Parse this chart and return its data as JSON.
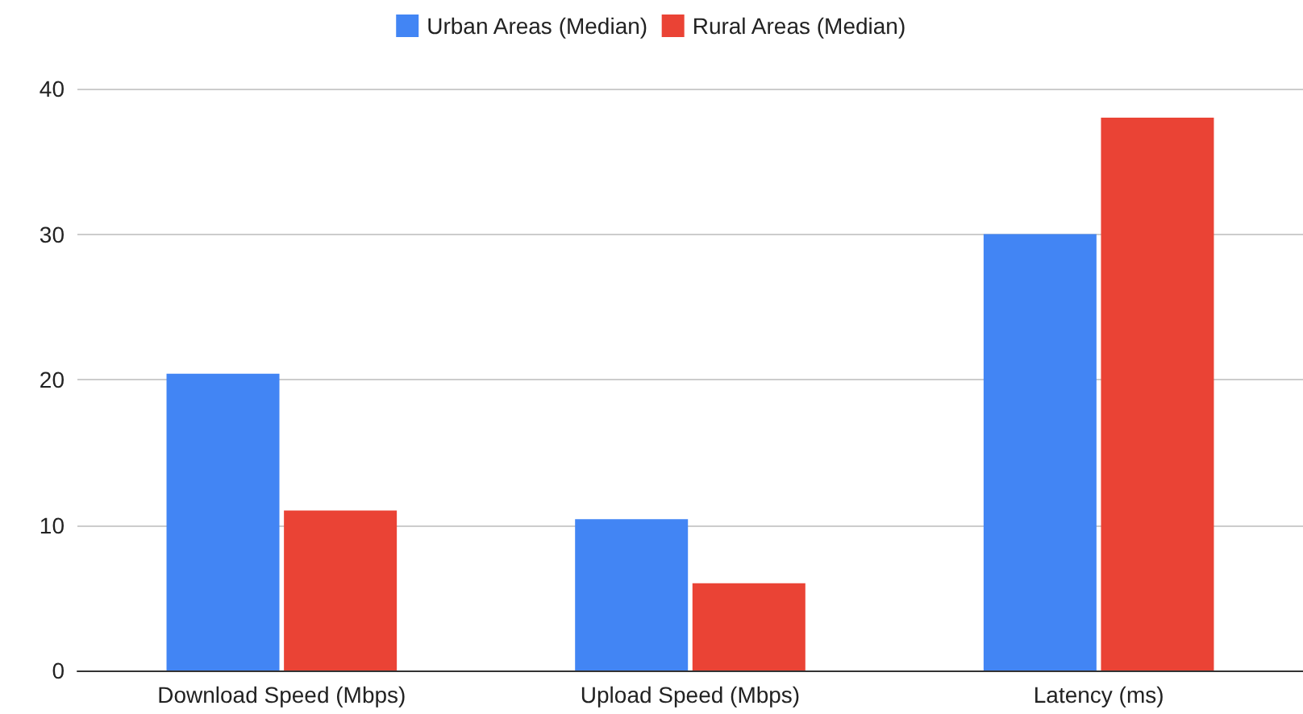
{
  "chart_data": {
    "type": "bar",
    "categories": [
      "Download Speed (Mbps)",
      "Upload Speed (Mbps)",
      "Latency (ms)"
    ],
    "series": [
      {
        "name": "Urban Areas (Median)",
        "color": "#4285f4",
        "values": [
          20.4,
          10.4,
          30
        ]
      },
      {
        "name": "Rural Areas (Median)",
        "color": "#ea4335",
        "values": [
          11,
          6,
          38
        ]
      }
    ],
    "ylim": [
      0,
      40
    ],
    "yticks": [
      0,
      10,
      20,
      30,
      40
    ],
    "grid": "y",
    "legend": "top"
  }
}
